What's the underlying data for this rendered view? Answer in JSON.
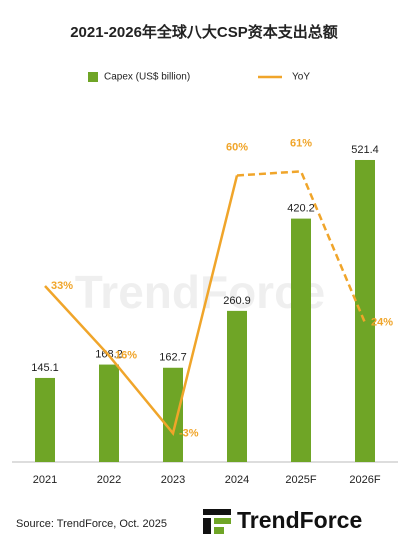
{
  "chart_data": {
    "type": "bar_line",
    "title": "2021-2026年全球八大CSP资本支出总额",
    "categories": [
      "2021",
      "2022",
      "2023",
      "2024",
      "2025F",
      "2026F"
    ],
    "series": [
      {
        "name": "Capex (US$ billion)",
        "type": "bar",
        "color": "#6fa526",
        "values": [
          145.1,
          168.2,
          162.7,
          260.9,
          420.2,
          521.4
        ]
      },
      {
        "name": "YoY",
        "type": "line",
        "axis": "y2",
        "color": "#f0a52a",
        "values": [
          33,
          16,
          -3,
          60,
          61,
          24
        ],
        "value_labels": [
          "33%",
          "16%",
          "-3%",
          "60%",
          "61%",
          "24%"
        ],
        "dashed_from": 3
      }
    ],
    "ylim": [
      0,
      530
    ],
    "y2lim": [
      -10,
      65
    ],
    "watermark": "TrendForce",
    "source": "Source: TrendForce, Oct. 2025",
    "logo": "TrendForce"
  }
}
